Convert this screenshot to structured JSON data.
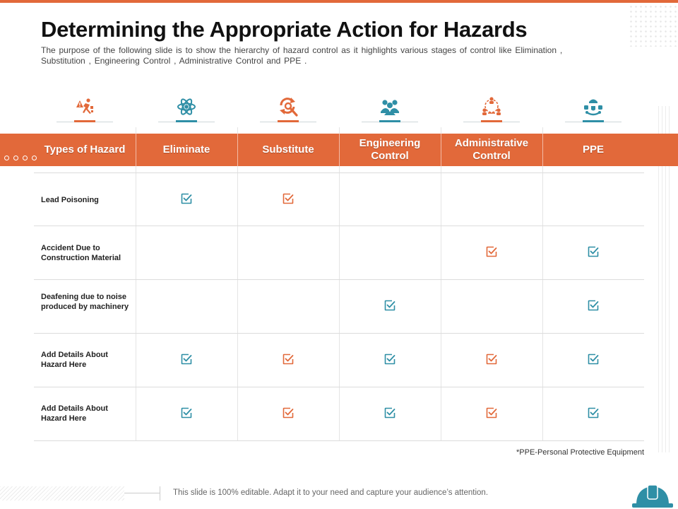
{
  "title": "Determining the Appropriate Action for Hazards",
  "subtitle": "The purpose of the following slide is to show the hierarchy of hazard control as it highlights various stages of control like Elimination , Substitution , Engineering Control , Administrative Control and PPE .",
  "colors": {
    "accent": "#e2693a",
    "teal": "#2f8fa6",
    "orange_check": "#e2693a"
  },
  "icons": [
    {
      "name": "hazard-person-icon",
      "color": "#e2693a"
    },
    {
      "name": "atom-icon",
      "color": "#2f8fa6"
    },
    {
      "name": "refresh-search-icon",
      "color": "#e2693a"
    },
    {
      "name": "team-icon",
      "color": "#2f8fa6"
    },
    {
      "name": "organization-icon",
      "color": "#e2693a"
    },
    {
      "name": "protective-equipment-icon",
      "color": "#2f8fa6"
    }
  ],
  "table": {
    "headers": [
      "Types of Hazard",
      "Eliminate",
      "Substitute",
      "Engineering Control",
      "Administrative Control",
      "PPE"
    ],
    "rows": [
      {
        "label": "Lead Poisoning",
        "checks": [
          true,
          true,
          false,
          false,
          false
        ]
      },
      {
        "label": "Accident Due to Construction Material",
        "checks": [
          false,
          false,
          false,
          true,
          true
        ]
      },
      {
        "label": "Deafening due to noise produced by machinery",
        "checks": [
          false,
          false,
          true,
          false,
          true
        ]
      },
      {
        "label": "Add Details About Hazard Here",
        "checks": [
          true,
          true,
          true,
          true,
          true
        ]
      },
      {
        "label": "Add Details About Hazard Here",
        "checks": [
          true,
          true,
          true,
          true,
          true
        ]
      }
    ],
    "check_colors": [
      "#2f8fa6",
      "#e2693a",
      "#2f8fa6",
      "#e2693a",
      "#2f8fa6"
    ]
  },
  "footnote": "*PPE-Personal Protective Equipment",
  "footer_text": "This slide is 100% editable. Adapt it to your need and capture your audience’s attention."
}
